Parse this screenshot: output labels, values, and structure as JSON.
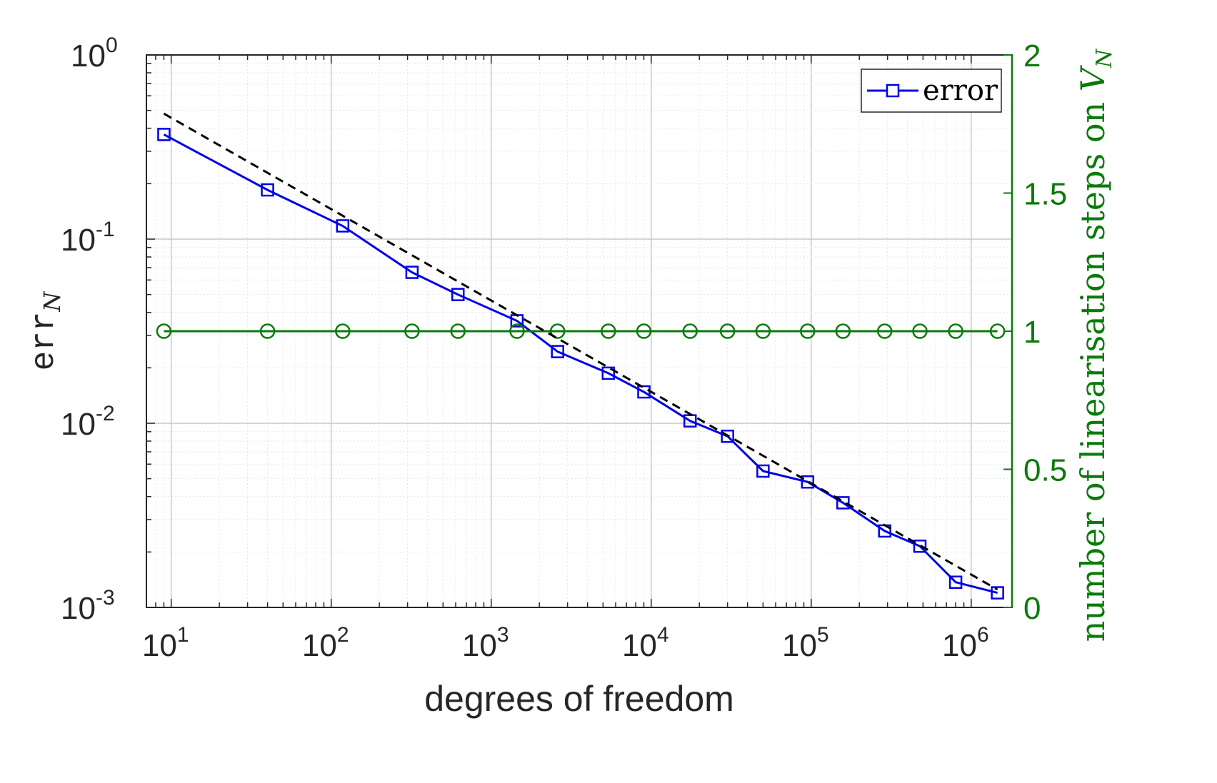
{
  "chart_data": {
    "type": "line",
    "xscale": "log",
    "x_ticks": [
      {
        "value": 10,
        "base": "10",
        "exp": "1"
      },
      {
        "value": 100,
        "base": "10",
        "exp": "2"
      },
      {
        "value": 1000,
        "base": "10",
        "exp": "3"
      },
      {
        "value": 10000,
        "base": "10",
        "exp": "4"
      },
      {
        "value": 100000,
        "base": "10",
        "exp": "5"
      },
      {
        "value": 1000000,
        "base": "10",
        "exp": "6"
      }
    ],
    "xlim": [
      7,
      1800000
    ],
    "xlabel": "degrees of freedom",
    "y_left": {
      "scale": "log",
      "ylim": [
        0.001,
        1
      ],
      "label_main": "err",
      "label_sub": "N",
      "ticks": [
        {
          "value": 1,
          "base": "10",
          "exp": "0"
        },
        {
          "value": 0.1,
          "base": "10",
          "exp": "-1"
        },
        {
          "value": 0.01,
          "base": "10",
          "exp": "-2"
        },
        {
          "value": 0.001,
          "base": "10",
          "exp": "-3"
        }
      ]
    },
    "y_right": {
      "scale": "linear",
      "ylim": [
        0,
        2
      ],
      "label_main": "number of linearisation steps on ",
      "label_var": "V",
      "label_sub": "N",
      "ticks": [
        {
          "value": 0,
          "label": "0"
        },
        {
          "value": 0.5,
          "label": "0.5"
        },
        {
          "value": 1,
          "label": "1"
        },
        {
          "value": 1.5,
          "label": "1.5"
        },
        {
          "value": 2,
          "label": "2"
        }
      ]
    },
    "grid": true,
    "legend_position": "top-right",
    "series": [
      {
        "name": "error",
        "axis": "left",
        "marker": "square",
        "color": "#0000e6",
        "x": [
          9,
          40,
          118,
          320,
          620,
          1450,
          2600,
          5400,
          9000,
          17500,
          30000,
          50000,
          95000,
          158000,
          288000,
          478000,
          800000,
          1460000
        ],
        "y": [
          0.37,
          0.185,
          0.118,
          0.066,
          0.05,
          0.036,
          0.0245,
          0.0187,
          0.0148,
          0.0103,
          0.0085,
          0.0055,
          0.0048,
          0.0037,
          0.0026,
          0.00215,
          0.00137,
          0.0012
        ]
      },
      {
        "axis": "right",
        "marker": "circle",
        "color": "#0b7a0b",
        "x": [
          9,
          40,
          118,
          320,
          620,
          1450,
          2600,
          5400,
          9000,
          17500,
          30000,
          50000,
          95000,
          158000,
          288000,
          478000,
          800000,
          1460000
        ],
        "y": [
          1,
          1,
          1,
          1,
          1,
          1,
          1,
          1,
          1,
          1,
          1,
          1,
          1,
          1,
          1,
          1,
          1,
          1
        ]
      },
      {
        "axis": "left",
        "style": "dashed",
        "color": "#000000",
        "x": [
          9,
          1460000
        ],
        "y": [
          0.48,
          0.00125
        ]
      }
    ]
  }
}
